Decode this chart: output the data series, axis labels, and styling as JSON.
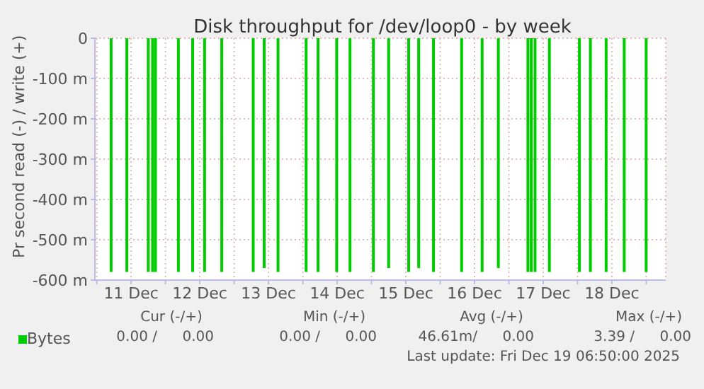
{
  "chart_data": {
    "type": "bar",
    "title": "Disk throughput for /dev/loop0 - by week",
    "ylabel": "Pr second read (-) / write (+)",
    "x": [
      "2025-12-11T05:00",
      "2025-12-11T10:30",
      "2025-12-11T18:00",
      "2025-12-11T19:30",
      "2025-12-11T20:30",
      "2025-12-12T04:30",
      "2025-12-12T09:30",
      "2025-12-12T13:40",
      "2025-12-12T19:40",
      "2025-12-13T06:40",
      "2025-12-13T10:30",
      "2025-12-13T15:20",
      "2025-12-14T01:10",
      "2025-12-14T05:20",
      "2025-12-14T11:50",
      "2025-12-14T16:30",
      "2025-12-15T00:40",
      "2025-12-15T06:00",
      "2025-12-15T13:00",
      "2025-12-15T16:30",
      "2025-12-15T21:40",
      "2025-12-16T07:30",
      "2025-12-16T14:40",
      "2025-12-16T20:20",
      "2025-12-17T06:40",
      "2025-12-17T07:50",
      "2025-12-17T09:10",
      "2025-12-17T14:10",
      "2025-12-18T00:40",
      "2025-12-18T04:30",
      "2025-12-18T10:00",
      "2025-12-18T16:20",
      "2025-12-19T00:00"
    ],
    "series": [
      {
        "name": "Bytes",
        "color": "#00cc00",
        "values": [
          -580,
          -580,
          -580,
          -580,
          -580,
          -580,
          -580,
          -580,
          -580,
          -580,
          -570,
          -580,
          -580,
          -580,
          -580,
          -580,
          -580,
          -570,
          -580,
          -570,
          -580,
          -580,
          -580,
          -570,
          -580,
          -580,
          -580,
          -580,
          -580,
          -580,
          -580,
          -580,
          -580
        ]
      }
    ],
    "xlim": [
      "2025-12-10T23:20",
      "2025-12-19T06:50"
    ],
    "xticks": [
      {
        "value": "2025-12-11",
        "label": null
      },
      {
        "value": "2025-12-11T12:00",
        "label": "11 Dec"
      },
      {
        "value": "2025-12-12",
        "label": null
      },
      {
        "value": "2025-12-12T12:00",
        "label": "12 Dec"
      },
      {
        "value": "2025-12-13",
        "label": null
      },
      {
        "value": "2025-12-13T12:00",
        "label": "13 Dec"
      },
      {
        "value": "2025-12-14",
        "label": null
      },
      {
        "value": "2025-12-14T12:00",
        "label": "14 Dec"
      },
      {
        "value": "2025-12-15",
        "label": null
      },
      {
        "value": "2025-12-15T12:00",
        "label": "15 Dec"
      },
      {
        "value": "2025-12-16",
        "label": null
      },
      {
        "value": "2025-12-16T12:00",
        "label": "16 Dec"
      },
      {
        "value": "2025-12-17",
        "label": null
      },
      {
        "value": "2025-12-17T12:00",
        "label": "17 Dec"
      },
      {
        "value": "2025-12-18",
        "label": null
      },
      {
        "value": "2025-12-18T12:00",
        "label": "18 Dec"
      },
      {
        "value": "2025-12-19",
        "label": null
      }
    ],
    "ylim": [
      -600,
      0
    ],
    "yticks": [
      {
        "value": -600,
        "label": "-600 m"
      },
      {
        "value": -500,
        "label": "-500 m"
      },
      {
        "value": -400,
        "label": "-400 m"
      },
      {
        "value": -300,
        "label": "-300 m"
      },
      {
        "value": -200,
        "label": "-200 m"
      },
      {
        "value": -100,
        "label": "-100 m"
      },
      0
    ],
    "grid": true,
    "legend": "bottom left",
    "annotations": [
      "Cur (-/+)",
      "Min (-/+)",
      "Avg (-/+)",
      "Max (-/+)",
      "0.00 /",
      "0.00",
      "0.00 /",
      "0.00",
      "46.61m/",
      "0.00",
      "3.39 /",
      "0.00",
      "Last update: Fri Dec 19 06:50:00 2025"
    ]
  }
}
